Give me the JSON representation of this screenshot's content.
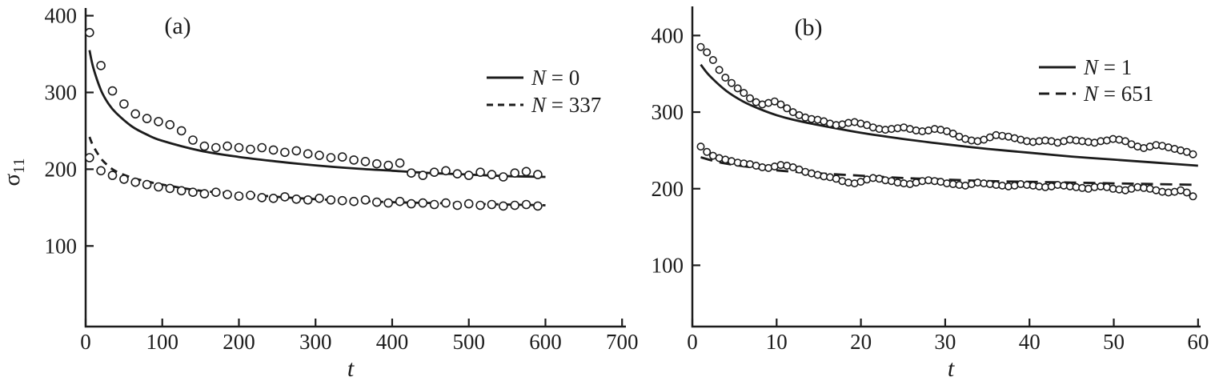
{
  "figure": {
    "background": "#ffffff",
    "ink": "#1c1c1c"
  },
  "chart_data": [
    {
      "id": "a",
      "type": "line+scatter",
      "title": "(a)",
      "xlabel": "t",
      "ylabel": {
        "base": "σ",
        "sub": "11"
      },
      "xlim": [
        0,
        705
      ],
      "ylim": [
        -5,
        410
      ],
      "xticks": [
        0,
        100,
        200,
        300,
        400,
        500,
        600,
        700
      ],
      "yticks": [
        100,
        200,
        300,
        400
      ],
      "grid": false,
      "legend_position": "upper-right",
      "legend": [
        {
          "var": "N",
          "rest": " = 0",
          "style": "solid"
        },
        {
          "var": "N",
          "rest": " = 337",
          "style": "dashed"
        }
      ],
      "series": [
        {
          "name": "N = 0 fit",
          "kind": "line",
          "style": "solid",
          "x": [
            5,
            10,
            20,
            30,
            40,
            60,
            80,
            100,
            150,
            200,
            250,
            300,
            350,
            400,
            450,
            500,
            550,
            600
          ],
          "y": [
            355,
            332,
            303,
            285,
            273,
            256,
            245,
            237,
            224,
            216,
            210,
            205,
            201,
            198,
            195,
            193,
            191,
            190
          ]
        },
        {
          "name": "N = 337 fit",
          "kind": "line",
          "style": "dashed",
          "x": [
            5,
            10,
            20,
            30,
            40,
            60,
            80,
            100,
            150,
            200,
            250,
            300,
            350,
            400,
            450,
            500,
            550,
            600
          ],
          "y": [
            242,
            230,
            214,
            204,
            197,
            189,
            184,
            180,
            172,
            168,
            164,
            161,
            159,
            157,
            156,
            155,
            154,
            153
          ]
        },
        {
          "name": "N = 0 experiment",
          "kind": "scatter",
          "x_start": 5,
          "x_step": 15,
          "y": [
            378,
            335,
            302,
            285,
            272,
            266,
            262,
            258,
            250,
            238,
            230,
            228,
            230,
            228,
            226,
            228,
            225,
            222,
            224,
            220,
            218,
            215,
            216,
            212,
            210,
            207,
            205,
            208,
            195,
            192,
            196,
            198,
            194,
            192,
            196,
            193,
            190,
            195,
            197,
            193
          ]
        },
        {
          "name": "N = 337 experiment",
          "kind": "scatter",
          "x_start": 5,
          "x_step": 15,
          "y": [
            215,
            198,
            192,
            187,
            183,
            180,
            177,
            175,
            172,
            170,
            168,
            170,
            167,
            165,
            166,
            163,
            162,
            164,
            161,
            160,
            162,
            160,
            159,
            158,
            160,
            157,
            156,
            158,
            155,
            156,
            154,
            156,
            153,
            155,
            153,
            154,
            152,
            153,
            154,
            152
          ]
        }
      ]
    },
    {
      "id": "b",
      "type": "line+scatter",
      "title": "(b)",
      "xlabel": "t",
      "xlim": [
        0,
        60.3
      ],
      "ylim": [
        20,
        438
      ],
      "xticks": [
        0,
        10,
        20,
        30,
        40,
        50,
        60
      ],
      "yticks": [
        100,
        200,
        300,
        400
      ],
      "grid": false,
      "legend_position": "upper-right",
      "legend": [
        {
          "var": "N",
          "rest": " = 1",
          "style": "solid"
        },
        {
          "var": "N",
          "rest": " = 651",
          "style": "dashed"
        }
      ],
      "series": [
        {
          "name": "N = 1 fit",
          "kind": "line",
          "style": "solid",
          "x": [
            1,
            2,
            4,
            6,
            8,
            10,
            12,
            15,
            20,
            25,
            30,
            35,
            40,
            45,
            50,
            55,
            60
          ],
          "y": [
            362,
            348,
            328,
            314,
            304,
            296,
            290,
            283,
            273,
            265,
            258,
            252,
            247,
            242,
            238,
            234,
            230
          ]
        },
        {
          "name": "N = 651 fit",
          "kind": "line",
          "style": "dashed",
          "x": [
            1,
            3,
            5,
            10,
            15,
            20,
            25,
            30,
            35,
            40,
            45,
            50,
            55,
            60
          ],
          "y": [
            241,
            235,
            231,
            224,
            220,
            217,
            214,
            212,
            210,
            209,
            208,
            207,
            206,
            205
          ]
        },
        {
          "name": "N = 1 experiment",
          "kind": "scatter",
          "x_start": 1,
          "x_step": 0.73,
          "y": [
            385,
            378,
            368,
            355,
            345,
            338,
            331,
            325,
            318,
            313,
            310,
            312,
            314,
            310,
            305,
            300,
            296,
            293,
            291,
            290,
            288,
            285,
            283,
            284,
            286,
            287,
            285,
            283,
            280,
            278,
            277,
            278,
            279,
            280,
            278,
            276,
            275,
            276,
            278,
            277,
            275,
            272,
            268,
            265,
            263,
            262,
            264,
            267,
            270,
            269,
            268,
            266,
            264,
            262,
            261,
            262,
            263,
            262,
            260,
            262,
            264,
            263,
            262,
            261,
            260,
            262,
            263,
            265,
            264,
            262,
            258,
            255,
            253,
            255,
            257,
            256,
            254,
            252,
            250,
            248,
            245
          ]
        },
        {
          "name": "N = 651 experiment",
          "kind": "scatter",
          "x_start": 1,
          "x_step": 0.73,
          "y": [
            255,
            248,
            243,
            240,
            238,
            236,
            234,
            233,
            232,
            230,
            228,
            227,
            229,
            231,
            230,
            228,
            225,
            222,
            220,
            218,
            216,
            215,
            213,
            210,
            208,
            207,
            209,
            212,
            214,
            213,
            211,
            210,
            208,
            207,
            206,
            208,
            210,
            211,
            210,
            209,
            207,
            206,
            205,
            204,
            206,
            208,
            207,
            206,
            205,
            204,
            203,
            204,
            206,
            205,
            204,
            203,
            202,
            203,
            205,
            204,
            203,
            202,
            201,
            200,
            202,
            203,
            202,
            200,
            199,
            198,
            200,
            202,
            201,
            200,
            198,
            196,
            195,
            196,
            198,
            195,
            190
          ]
        }
      ]
    }
  ]
}
